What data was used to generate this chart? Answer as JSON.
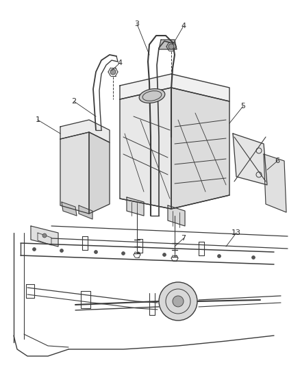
{
  "bg_color": "#ffffff",
  "line_color": "#3a3a3a",
  "label_color": "#2a2a2a",
  "fig_width": 4.38,
  "fig_height": 5.33,
  "dpi": 100
}
